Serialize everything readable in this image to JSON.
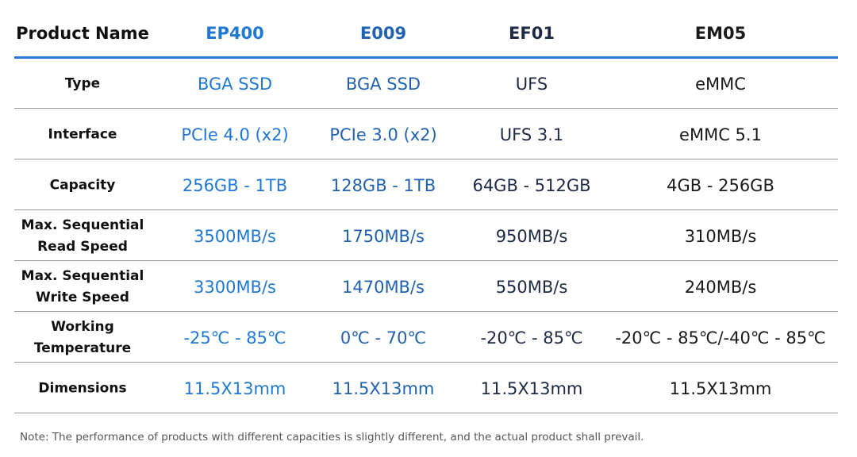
{
  "table": {
    "header": {
      "label": "Product Name",
      "columns": [
        {
          "name": "EP400",
          "color": "#1f78d4"
        },
        {
          "name": "E009",
          "color": "#2062b0"
        },
        {
          "name": "EF01",
          "color": "#1e2a44"
        },
        {
          "name": "EM05",
          "color": "#1a1a1a"
        }
      ]
    },
    "rows": [
      {
        "label": "Type",
        "cells": [
          "BGA SSD",
          "BGA SSD",
          "UFS",
          "eMMC"
        ]
      },
      {
        "label": "Interface",
        "cells": [
          "PCIe 4.0 (x2)",
          "PCIe 3.0 (x2)",
          "UFS 3.1",
          "eMMC 5.1"
        ]
      },
      {
        "label": "Capacity",
        "cells": [
          "256GB - 1TB",
          "128GB - 1TB",
          "64GB - 512GB",
          "4GB - 256GB"
        ]
      },
      {
        "label": "Max. Sequential\nRead Speed",
        "cells": [
          "3500MB/s",
          "1750MB/s",
          "950MB/s",
          "310MB/s"
        ]
      },
      {
        "label": "Max. Sequential\nWrite Speed",
        "cells": [
          "3300MB/s",
          "1470MB/s",
          "550MB/s",
          "240MB/s"
        ]
      },
      {
        "label": "Working\nTemperature",
        "cells": [
          "-25℃ - 85℃",
          "0℃ - 70℃",
          "-20℃ - 85℃",
          "-20℃ - 85℃/-40℃ - 85℃"
        ]
      },
      {
        "label": "Dimensions",
        "cells": [
          "11.5X13mm",
          "11.5X13mm",
          "11.5X13mm",
          "11.5X13mm"
        ]
      }
    ]
  },
  "note": "Note: The performance of products with different capacities is slightly different, and the actual product shall prevail."
}
